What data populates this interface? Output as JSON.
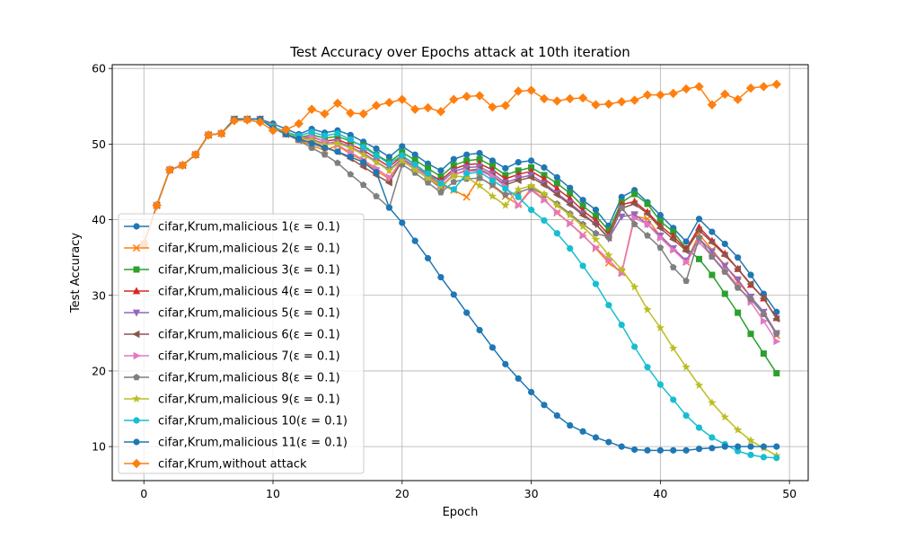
{
  "chart_data": {
    "type": "line",
    "title": "Test Accuracy over Epochs attack at 10th iteration",
    "xlabel": "Epoch",
    "ylabel": "Test Accuracy",
    "xlim": [
      -2.45,
      51.45
    ],
    "ylim": [
      5.5,
      60.5
    ],
    "xticks": [
      0,
      10,
      20,
      30,
      40,
      50
    ],
    "yticks": [
      10,
      20,
      30,
      40,
      50,
      60
    ],
    "grid": true,
    "legend_position": "lower-left",
    "x": [
      0,
      1,
      2,
      3,
      4,
      5,
      6,
      7,
      8,
      9,
      10,
      11,
      12,
      13,
      14,
      15,
      16,
      17,
      18,
      19,
      20,
      21,
      22,
      23,
      24,
      25,
      26,
      27,
      28,
      29,
      30,
      31,
      32,
      33,
      34,
      35,
      36,
      37,
      38,
      39,
      40,
      41,
      42,
      43,
      44,
      45,
      46,
      47,
      48,
      49
    ],
    "series": [
      {
        "name": "cifar,Krum,malicious 1(",
        "color": "#1f77b4",
        "marker": "circle",
        "values": [
          36.8,
          41.9,
          46.6,
          47.2,
          48.6,
          51.2,
          51.4,
          53.3,
          53.3,
          53.3,
          52.7,
          52.0,
          51.3,
          52.0,
          51.5,
          51.8,
          51.2,
          50.3,
          49.4,
          48.3,
          49.7,
          48.6,
          47.4,
          46.5,
          48.0,
          48.6,
          48.8,
          47.8,
          46.8,
          47.6,
          47.8,
          46.9,
          45.6,
          44.2,
          42.6,
          41.3,
          39.2,
          43.0,
          43.9,
          42.3,
          40.6,
          38.9,
          37.1,
          40.1,
          38.4,
          36.8,
          35.0,
          32.7,
          30.2,
          27.8
        ]
      },
      {
        "name": "cifar,Krum,malicious 2(",
        "color": "#ff7f0e",
        "marker": "x",
        "values": [
          36.8,
          41.9,
          46.6,
          47.2,
          48.6,
          51.2,
          51.4,
          53.3,
          53.3,
          53.3,
          52.4,
          51.3,
          50.6,
          49.8,
          49.2,
          49.8,
          48.7,
          47.8,
          46.5,
          45.4,
          48.0,
          47.1,
          45.8,
          44.6,
          43.9,
          43.0,
          45.6,
          44.5,
          43.1,
          42.0,
          44.1,
          42.7,
          40.9,
          39.5,
          38.0,
          36.2,
          34.3,
          33.0,
          40.5,
          40.1,
          37.8,
          36.2,
          34.4,
          38.1,
          36.0,
          34.0,
          31.8,
          29.8,
          27.8,
          24.7
        ]
      },
      {
        "name": "cifar,Krum,malicious 3(",
        "color": "#2ca02c",
        "marker": "square",
        "values": [
          36.8,
          41.9,
          46.6,
          47.2,
          48.6,
          51.2,
          51.4,
          53.3,
          53.3,
          53.3,
          52.3,
          51.5,
          50.9,
          51.2,
          50.8,
          51.0,
          50.4,
          49.8,
          48.6,
          47.6,
          48.9,
          47.9,
          46.8,
          45.7,
          47.2,
          47.8,
          48.0,
          47.1,
          45.9,
          46.5,
          46.9,
          45.9,
          44.8,
          43.5,
          41.8,
          40.5,
          38.6,
          42.3,
          43.4,
          42.1,
          39.8,
          38.4,
          36.2,
          34.8,
          32.7,
          30.2,
          27.7,
          24.9,
          22.3,
          19.7
        ]
      },
      {
        "name": "cifar,Krum,malicious 4(",
        "color": "#d62728",
        "marker": "triangle-up",
        "values": [
          36.8,
          41.9,
          46.6,
          47.2,
          48.6,
          51.2,
          51.4,
          53.3,
          53.3,
          53.3,
          52.3,
          51.4,
          50.7,
          50.9,
          50.4,
          50.6,
          49.9,
          49.2,
          48.1,
          47.0,
          48.4,
          47.3,
          46.1,
          45.2,
          46.7,
          47.3,
          47.4,
          46.6,
          45.4,
          46.0,
          46.4,
          45.4,
          44.1,
          42.8,
          41.2,
          39.9,
          38.0,
          42.0,
          42.4,
          41.0,
          39.2,
          37.8,
          36.1,
          39.0,
          37.2,
          35.5,
          33.5,
          31.4,
          29.6,
          27.0
        ]
      },
      {
        "name": "cifar,Krum,malicious 5(",
        "color": "#9467bd",
        "marker": "triangle-down",
        "values": [
          36.8,
          41.9,
          46.6,
          47.2,
          48.6,
          51.2,
          51.4,
          53.3,
          53.3,
          53.3,
          52.3,
          51.4,
          50.7,
          50.6,
          50.1,
          50.3,
          49.6,
          48.8,
          47.7,
          46.6,
          48.1,
          47.0,
          45.9,
          44.9,
          46.4,
          46.9,
          47.0,
          46.1,
          44.9,
          45.5,
          45.9,
          44.8,
          43.5,
          42.2,
          40.8,
          39.4,
          37.5,
          40.4,
          40.7,
          39.4,
          37.9,
          36.2,
          34.6,
          37.5,
          35.8,
          33.9,
          32.1,
          29.8,
          27.8,
          25.0
        ]
      },
      {
        "name": "cifar,Krum,malicious 6(",
        "color": "#8c564b",
        "marker": "triangle-left",
        "values": [
          36.8,
          41.9,
          46.6,
          47.2,
          48.6,
          51.2,
          51.4,
          53.3,
          53.3,
          53.3,
          52.2,
          51.3,
          50.5,
          50.3,
          49.6,
          49.0,
          48.1,
          47.0,
          45.9,
          44.9,
          47.8,
          46.7,
          45.5,
          44.2,
          46.0,
          46.5,
          46.7,
          45.8,
          44.6,
          45.2,
          45.6,
          44.6,
          43.3,
          42.0,
          40.6,
          39.4,
          37.6,
          41.5,
          42.1,
          40.8,
          38.9,
          37.4,
          35.9,
          38.6,
          37.0,
          35.3,
          33.5,
          31.5,
          29.6,
          26.9
        ]
      },
      {
        "name": "cifar,Krum,malicious 7(",
        "color": "#e377c2",
        "marker": "triangle-right",
        "values": [
          36.8,
          41.9,
          46.6,
          47.2,
          48.6,
          51.2,
          51.4,
          53.3,
          53.3,
          53.3,
          52.3,
          51.4,
          50.8,
          51.0,
          50.4,
          49.9,
          48.9,
          47.9,
          46.8,
          45.6,
          47.9,
          46.8,
          45.6,
          44.5,
          46.0,
          46.4,
          46.5,
          45.7,
          44.4,
          41.9,
          43.9,
          42.6,
          41.0,
          39.5,
          37.9,
          36.3,
          34.7,
          32.9,
          40.2,
          39.4,
          37.6,
          36.0,
          34.4,
          37.0,
          35.2,
          33.3,
          31.3,
          29.1,
          26.6,
          23.9
        ]
      },
      {
        "name": "cifar,Krum,malicious 8(",
        "color": "#7f7f7f",
        "marker": "pentagon",
        "values": [
          36.8,
          41.9,
          46.6,
          47.2,
          48.6,
          51.2,
          51.4,
          53.3,
          53.3,
          53.3,
          52.2,
          51.3,
          50.5,
          49.5,
          48.6,
          47.5,
          46.0,
          44.6,
          43.1,
          41.6,
          47.3,
          46.2,
          44.9,
          43.6,
          45.0,
          45.4,
          45.5,
          44.6,
          43.3,
          43.6,
          44.2,
          43.3,
          42.1,
          40.8,
          39.4,
          38.2,
          37.7,
          41.6,
          39.4,
          37.9,
          36.3,
          33.7,
          31.9,
          37.6,
          35.1,
          33.1,
          31.0,
          29.5,
          27.5,
          24.9
        ]
      },
      {
        "name": "cifar,Krum,malicious 9(",
        "color": "#bcbd22",
        "marker": "star",
        "values": [
          36.8,
          41.9,
          46.6,
          47.2,
          48.6,
          51.2,
          51.4,
          53.3,
          53.3,
          53.3,
          52.3,
          51.5,
          50.8,
          50.5,
          49.9,
          50.1,
          49.5,
          48.6,
          47.6,
          46.5,
          47.8,
          46.6,
          45.5,
          44.4,
          45.8,
          45.6,
          44.5,
          43.1,
          41.9,
          44.0,
          44.5,
          43.4,
          41.9,
          40.6,
          39.1,
          37.4,
          35.3,
          33.4,
          31.1,
          28.1,
          25.7,
          23.0,
          20.5,
          18.1,
          15.8,
          13.9,
          12.2,
          10.8,
          9.8,
          8.8
        ]
      },
      {
        "name": "cifar,Krum,malicious 10(",
        "color": "#17becf",
        "marker": "circle",
        "values": [
          36.8,
          41.9,
          46.6,
          47.2,
          48.6,
          51.2,
          51.4,
          53.3,
          53.3,
          53.3,
          52.3,
          51.6,
          51.1,
          51.6,
          51.1,
          51.4,
          50.6,
          49.6,
          48.5,
          47.4,
          48.5,
          47.3,
          46.1,
          44.8,
          44.0,
          46.1,
          46.3,
          45.2,
          44.1,
          43.0,
          41.3,
          39.9,
          38.2,
          36.2,
          33.9,
          31.5,
          28.7,
          26.1,
          23.2,
          20.5,
          18.2,
          16.2,
          14.1,
          12.5,
          11.2,
          10.3,
          9.4,
          8.9,
          8.6,
          8.5
        ]
      },
      {
        "name": "cifar,Krum,malicious 11(",
        "color": "#1f77b4",
        "marker": "circle",
        "values": [
          36.8,
          41.9,
          46.6,
          47.2,
          48.6,
          51.2,
          51.4,
          53.3,
          53.3,
          53.3,
          52.1,
          51.3,
          50.7,
          50.1,
          49.5,
          49.0,
          48.3,
          47.6,
          46.3,
          41.6,
          39.6,
          37.2,
          34.9,
          32.4,
          30.1,
          27.7,
          25.4,
          23.1,
          20.9,
          19.0,
          17.2,
          15.5,
          14.1,
          12.8,
          12.0,
          11.2,
          10.6,
          10.0,
          9.6,
          9.5,
          9.5,
          9.5,
          9.5,
          9.7,
          9.8,
          10.0,
          10.0,
          10.0,
          10.0,
          10.0
        ]
      },
      {
        "name": "cifar,Krum,without attack",
        "color": "#ff7f0e",
        "marker": "diamond",
        "values": [
          36.8,
          41.9,
          46.6,
          47.2,
          48.6,
          51.2,
          51.4,
          53.1,
          53.2,
          52.9,
          51.8,
          51.9,
          52.7,
          54.6,
          54.0,
          55.4,
          54.1,
          54.0,
          55.1,
          55.5,
          55.9,
          54.6,
          54.8,
          54.3,
          55.9,
          56.3,
          56.4,
          54.9,
          55.1,
          57.0,
          57.1,
          56.0,
          55.7,
          56.0,
          56.1,
          55.2,
          55.3,
          55.6,
          55.8,
          56.5,
          56.5,
          56.7,
          57.3,
          57.6,
          55.2,
          56.6,
          55.9,
          57.4,
          57.6,
          57.9
        ]
      }
    ]
  },
  "legend": {
    "epsilon_suffix": "ε = 0.1)"
  }
}
